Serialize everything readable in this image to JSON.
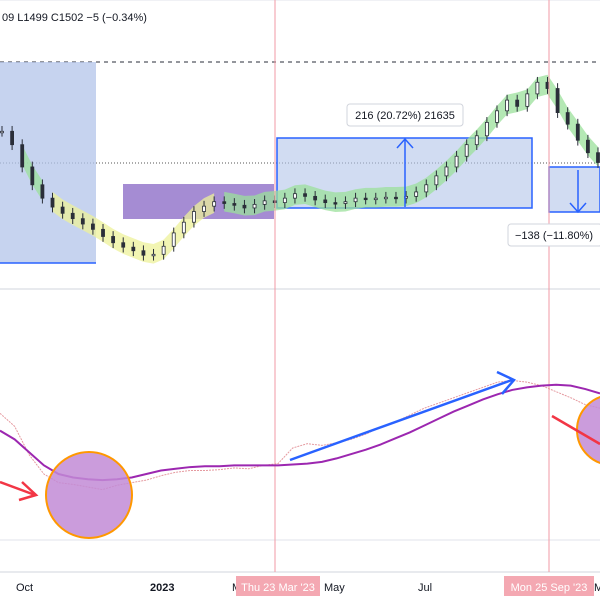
{
  "header": {
    "ohlc_text": "09  L1499  C1502  −5 (−0.34%)"
  },
  "colors": {
    "candle": "#2a2e39",
    "range_fill_blue": "#b3c4ea",
    "range_border_blue": "#2962ff",
    "range_fill_purple": "#8f6fc8",
    "cloud_green": "#9be09b",
    "cloud_yellow": "#eef29a",
    "ma_purple": "#9c27b0",
    "arrow_red": "#f23645",
    "arrow_blue": "#2962ff",
    "circle_fill": "#c28bd6",
    "circle_border": "#ff9800",
    "vline_red": "#f29aa5",
    "marker_bg": "#f4a8b2"
  },
  "measures": {
    "up_label": "216 (20.72%) 21635",
    "down_label": "−138 (−11.80%)"
  },
  "time_axis": {
    "labels": [
      "Oct",
      "2023",
      "M",
      "May",
      "Jul",
      "M"
    ],
    "markers": [
      "Thu 23 Mar '23",
      "Mon 25 Sep '23"
    ]
  },
  "icons": {
    "up_arrow": "up-arrow-icon",
    "down_arrow": "down-arrow-icon"
  },
  "chart_data": {
    "type": "line",
    "panels": [
      "price",
      "indicator"
    ],
    "price_series": {
      "name": "",
      "close": [
        1580,
        1565,
        1540,
        1520,
        1505,
        1495,
        1488,
        1482,
        1476,
        1470,
        1462,
        1455,
        1450,
        1446,
        1441,
        1442,
        1451,
        1466,
        1478,
        1490,
        1496,
        1501,
        1499,
        1497,
        1494,
        1498,
        1502,
        1500,
        1505,
        1510,
        1507,
        1503,
        1500,
        1499,
        1501,
        1505,
        1504,
        1505,
        1506,
        1505,
        1507,
        1512,
        1520,
        1530,
        1540,
        1552,
        1565,
        1575,
        1590,
        1603,
        1615,
        1608,
        1622,
        1635,
        1628,
        1601,
        1588,
        1570,
        1556,
        1545
      ]
    },
    "ranges": {
      "up_move": {
        "change": 216,
        "percent": 20.72,
        "level": 21635
      },
      "down_move": {
        "change": -138,
        "percent": -11.8
      }
    },
    "indicator_series": [
      {
        "name": "",
        "values": [
          120,
          110,
          95,
          80,
          70,
          66,
          64,
          63,
          64,
          66,
          70,
          74,
          76,
          78,
          79,
          79,
          80,
          80,
          80,
          80,
          81,
          82,
          84,
          88,
          93,
          98,
          104,
          111,
          118,
          126,
          134,
          142,
          149,
          156,
          162,
          167,
          170,
          172,
          173,
          172,
          168,
          163
        ]
      },
      {
        "name": "",
        "values": [
          140,
          125,
          92,
          70,
          60,
          58,
          55,
          52,
          57,
          60,
          63,
          68,
          72,
          74,
          74,
          75,
          77,
          76,
          80,
          82,
          100,
          105,
          103,
          106,
          110,
          116,
          124,
          130,
          138,
          146,
          152,
          158,
          164,
          170,
          176,
          178,
          176,
          172,
          165,
          158,
          150,
          146
        ]
      }
    ]
  }
}
